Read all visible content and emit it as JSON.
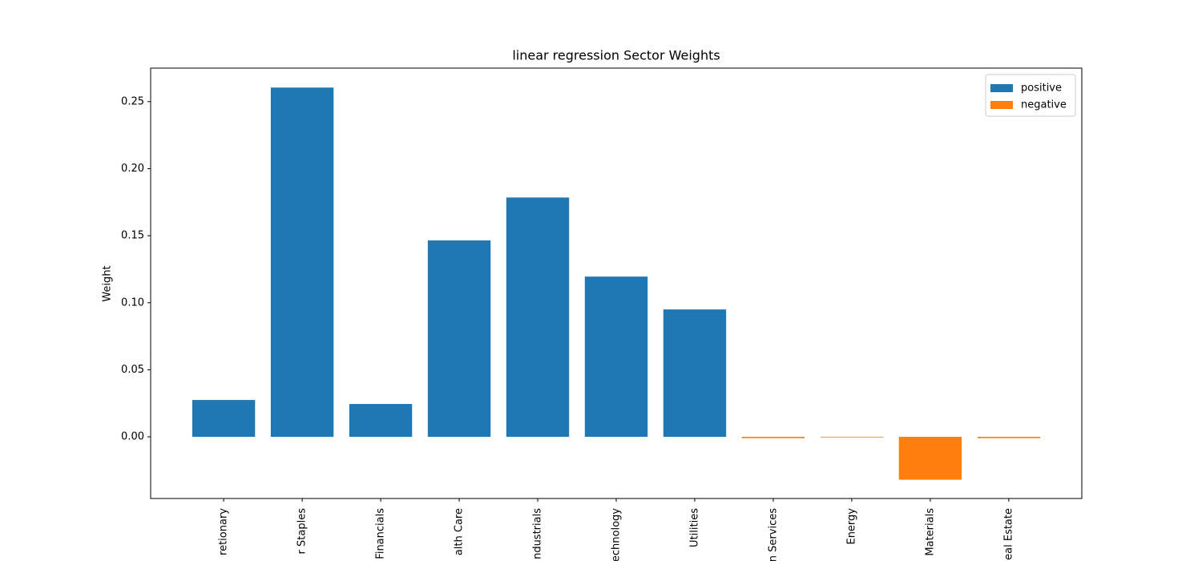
{
  "chart_data": {
    "type": "bar",
    "title": "linear regression Sector Weights",
    "y_label": "Weight",
    "categories": [
      "retionary",
      "r Staples",
      "Financials",
      "alth Care",
      "ndustrials",
      "echnology",
      "Utilities",
      "n Services",
      "Energy",
      "Materials",
      "eal Estate"
    ],
    "series": [
      {
        "name": "positive",
        "color": "#1f77b4",
        "values": [
          0.0275,
          0.2605,
          0.0245,
          0.1465,
          0.1785,
          0.1195,
          0.095,
          null,
          null,
          null,
          null
        ]
      },
      {
        "name": "negative",
        "color": "#ff7f0e",
        "values": [
          null,
          null,
          null,
          null,
          null,
          null,
          null,
          -0.001,
          -0.0005,
          -0.032,
          -0.001
        ]
      }
    ],
    "ylim": [
      -0.046,
      0.275
    ],
    "yticks": [
      {
        "value": 0,
        "label": "0.00"
      },
      {
        "value": 0.05,
        "label": "0.05"
      },
      {
        "value": 0.1,
        "label": "0.10"
      },
      {
        "value": 0.15,
        "label": "0.15"
      },
      {
        "value": 0.2,
        "label": "0.20"
      },
      {
        "value": 0.25,
        "label": "0.25"
      }
    ],
    "legend": "upper right"
  }
}
